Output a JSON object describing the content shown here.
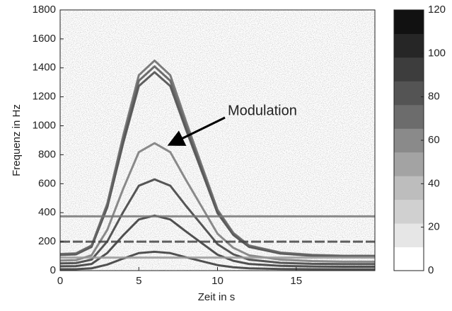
{
  "chart_data": {
    "type": "spectrogram",
    "xlabel": "Zeit in s",
    "ylabel": "Frequenz in Hz",
    "xlim": [
      0,
      20
    ],
    "xticks": [
      0,
      5,
      10,
      15
    ],
    "ylim": [
      0,
      1800
    ],
    "yticks": [
      0,
      200,
      400,
      600,
      800,
      1000,
      1200,
      1400,
      1600,
      1800
    ],
    "annotation": "Modulation",
    "x": [
      0,
      1,
      2,
      3,
      4,
      5,
      6,
      7,
      8,
      9,
      10,
      11,
      12,
      14,
      16,
      18,
      20
    ],
    "series": [
      {
        "color": "#333333",
        "values": [
          10,
          10,
          16,
          42,
          83,
          121,
          130,
          121,
          92,
          65,
          38,
          23,
          16,
          11,
          10,
          9,
          9
        ]
      },
      {
        "color": "#333333",
        "values": [
          30,
          31,
          46,
          122,
          243,
          353,
          380,
          353,
          270,
          190,
          110,
          68,
          46,
          33,
          29,
          27,
          27
        ]
      },
      {
        "color": "#3a3a3a",
        "values": [
          50,
          52,
          76,
          202,
          403,
          586,
          630,
          586,
          447,
          315,
          183,
          113,
          76,
          54,
          47,
          45,
          45
        ]
      },
      {
        "color": "#777777",
        "values": [
          70,
          72,
          106,
          282,
          563,
          818,
          880,
          818,
          625,
          440,
          255,
          158,
          106,
          76,
          66,
          62,
          62
        ]
      },
      {
        "color": "#444444",
        "values": [
          108,
          112,
          164,
          438,
          877,
          1274,
          1370,
          1274,
          973,
          685,
          397,
          247,
          164,
          118,
          103,
          97,
          97
        ]
      },
      {
        "color": "#555555",
        "values": [
          111,
          116,
          169,
          451,
          902,
          1311,
          1410,
          1311,
          1001,
          705,
          409,
          254,
          169,
          121,
          106,
          100,
          100
        ]
      },
      {
        "color": "#666666",
        "values": [
          115,
          119,
          174,
          464,
          928,
          1349,
          1450,
          1349,
          1030,
          725,
          421,
          261,
          174,
          125,
          109,
          103,
          103
        ]
      },
      {
        "color": "#777777",
        "x": [
          0,
          20
        ],
        "values": [
          375,
          375
        ]
      },
      {
        "color": "#444444",
        "x": [
          0,
          20
        ],
        "values": [
          200,
          200
        ],
        "dash": true
      },
      {
        "color": "#999999",
        "x": [
          0,
          20
        ],
        "values": [
          90,
          90
        ]
      }
    ],
    "colorbar": {
      "lim": [
        0,
        120
      ],
      "ticks": [
        0,
        20,
        40,
        60,
        80,
        100,
        120
      ],
      "colors": [
        "#ffffff",
        "#e6e6e6",
        "#d0d0d0",
        "#bdbdbd",
        "#a3a3a3",
        "#8a8a8a",
        "#6c6c6c",
        "#545454",
        "#3d3d3d",
        "#262626",
        "#111111"
      ]
    }
  }
}
